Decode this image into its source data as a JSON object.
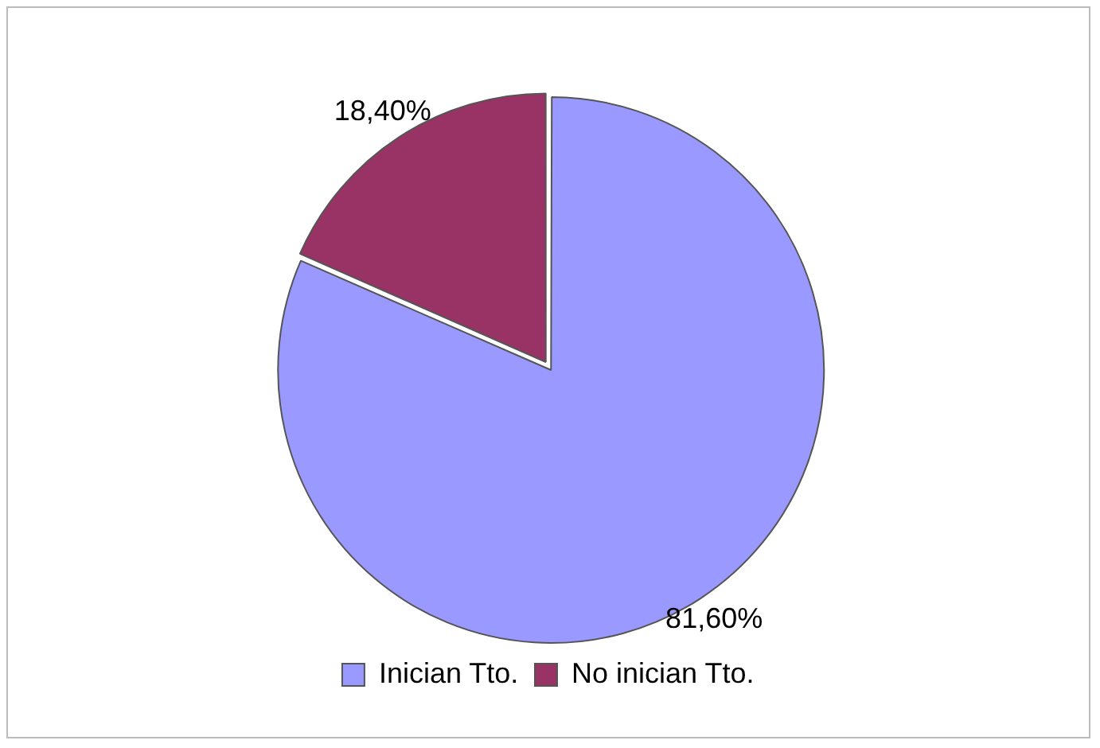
{
  "chart_data": {
    "type": "pie",
    "categories": [
      "Inician Tto.",
      "No inician Tto."
    ],
    "values": [
      81.6,
      18.4
    ],
    "value_labels": [
      "81,60%",
      "18,40%"
    ],
    "colors": [
      "#9999ff",
      "#993366"
    ],
    "legend": "bottom"
  }
}
